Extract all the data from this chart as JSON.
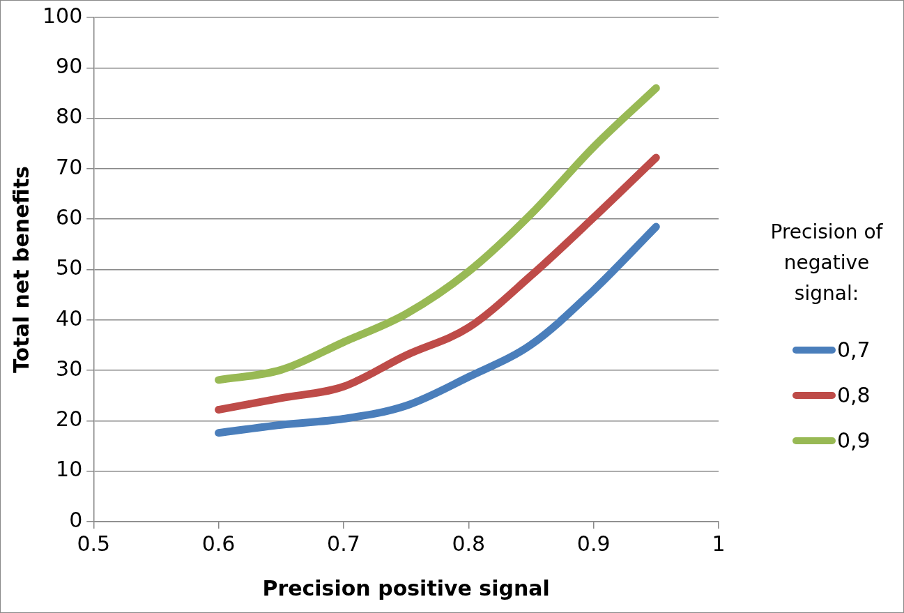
{
  "chart_data": {
    "type": "line",
    "xlabel": "Precision positive signal",
    "ylabel": "Total net benefits",
    "legend_title": "Precision of negative signal:",
    "legend": "right",
    "grid": "y",
    "marker": "none",
    "line_style": "solid",
    "x": [
      0.6,
      0.65,
      0.7,
      0.75,
      0.8,
      0.85,
      0.9,
      0.95
    ],
    "xlim": [
      0.5,
      1
    ],
    "xticks": [
      0.5,
      0.6,
      0.7,
      0.8,
      0.9,
      1
    ],
    "ylim": [
      0,
      100
    ],
    "yticks": [
      0,
      10,
      20,
      30,
      40,
      50,
      60,
      70,
      80,
      90,
      100
    ],
    "series": [
      {
        "name": "0,7",
        "color": "#4a7ebb",
        "values": [
          17.6,
          19.2,
          20.4,
          23,
          28.7,
          35.1,
          45.9,
          58.5
        ]
      },
      {
        "name": "0,8",
        "color": "#be4b48",
        "values": [
          22.2,
          24.5,
          26.8,
          33,
          38.5,
          48.8,
          60.3,
          72.2
        ]
      },
      {
        "name": "0,9",
        "color": "#98b954",
        "values": [
          28.1,
          30.1,
          35.6,
          41.2,
          49.6,
          61,
          74.3,
          86
        ]
      }
    ]
  }
}
